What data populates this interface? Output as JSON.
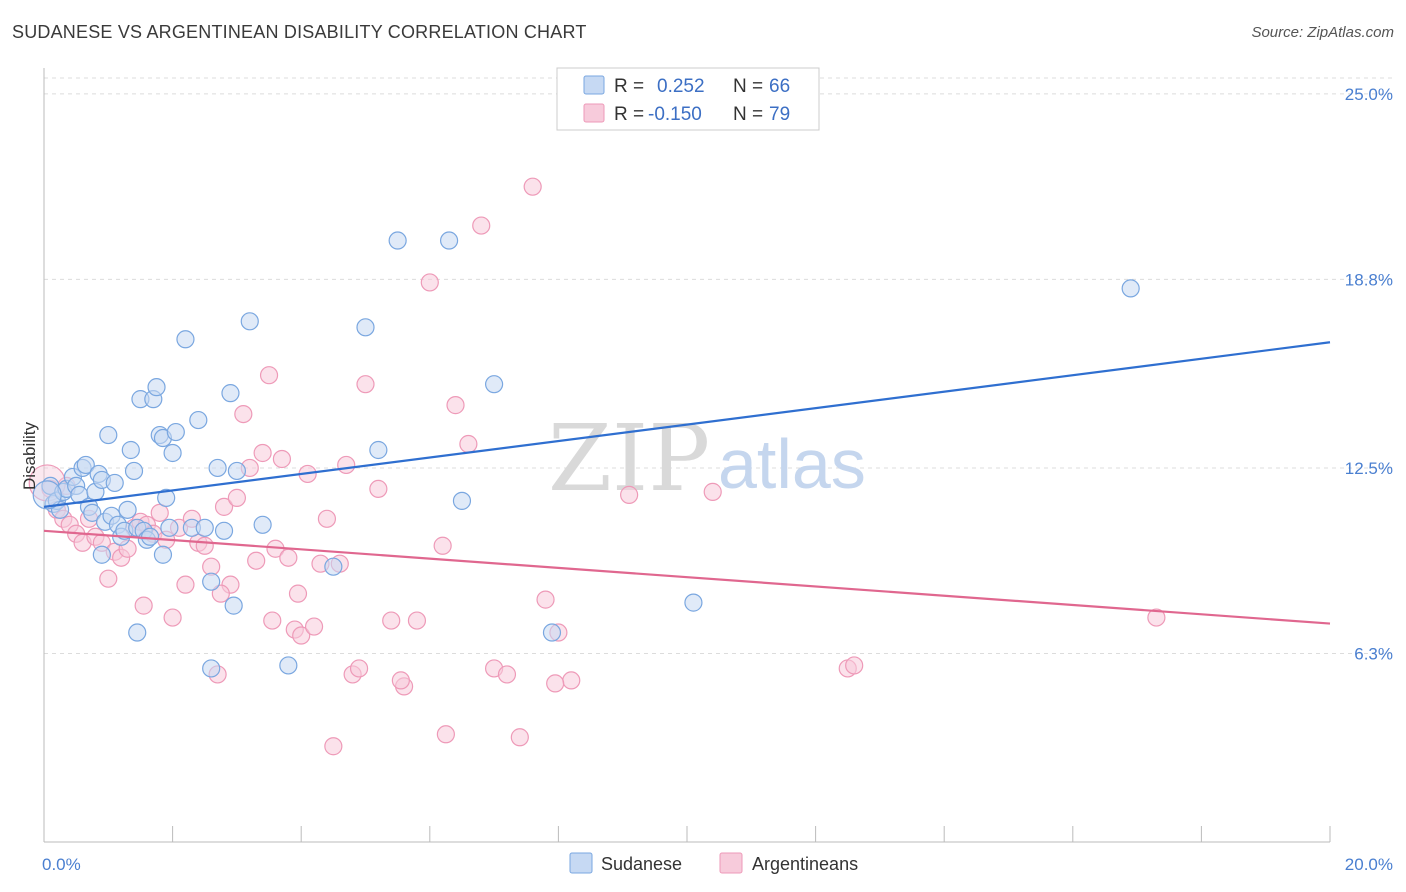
{
  "title": "SUDANESE VS ARGENTINEAN DISABILITY CORRELATION CHART",
  "source": "Source: ZipAtlas.com",
  "watermark": {
    "zip": "ZIP",
    "atlas": "atlas"
  },
  "chart_data": {
    "type": "scatter",
    "title": "SUDANESE VS ARGENTINEAN DISABILITY CORRELATION CHART",
    "xlabel": "",
    "ylabel": "Disability",
    "xlim": [
      0,
      20
    ],
    "ylim": [
      0,
      26.2
    ],
    "x_tick_labels": [
      {
        "value": 0,
        "label": "0.0%"
      },
      {
        "value": 20,
        "label": "20.0%"
      }
    ],
    "y_tick_labels": [
      {
        "value": 6.3,
        "label": "6.3%"
      },
      {
        "value": 12.5,
        "label": "12.5%"
      },
      {
        "value": 18.8,
        "label": "18.8%"
      },
      {
        "value": 25.0,
        "label": "25.0%"
      }
    ],
    "grid": true,
    "legend_position": "top-center",
    "colors": {
      "sudanese": "#7aa7e0",
      "sudanese_fill": "#c6d9f3",
      "sudanese_line": "#2f6fd0",
      "argentineans": "#ee9ab8",
      "argentineans_fill": "#f7cbdb",
      "argentineans_line": "#e0678f",
      "tick_label": "#4a7fd0"
    },
    "legend": [
      {
        "series": "Sudanese",
        "r_label": "R =",
        "r": "0.252",
        "n_label": "N =",
        "n": "66"
      },
      {
        "series": "Argentineans",
        "r_label": "R =",
        "r": "-0.150",
        "n_label": "N =",
        "n": "79"
      }
    ],
    "series": [
      {
        "name": "Sudanese",
        "trend": [
          [
            0,
            11.2
          ],
          [
            20,
            16.7
          ]
        ],
        "points": [
          [
            0.1,
            11.9
          ],
          [
            0.15,
            11.3
          ],
          [
            0.2,
            11.4
          ],
          [
            0.25,
            11.1
          ],
          [
            0.3,
            11.7
          ],
          [
            0.35,
            11.8
          ],
          [
            0.45,
            12.2
          ],
          [
            0.5,
            11.9
          ],
          [
            0.55,
            11.6
          ],
          [
            0.6,
            12.5
          ],
          [
            0.65,
            12.6
          ],
          [
            0.7,
            11.2
          ],
          [
            0.75,
            11.0
          ],
          [
            0.8,
            11.7
          ],
          [
            0.85,
            12.3
          ],
          [
            0.9,
            12.1
          ],
          [
            0.95,
            10.7
          ],
          [
            1.0,
            13.6
          ],
          [
            1.05,
            10.9
          ],
          [
            1.1,
            12.0
          ],
          [
            1.15,
            10.6
          ],
          [
            1.2,
            10.2
          ],
          [
            1.25,
            10.4
          ],
          [
            1.3,
            11.1
          ],
          [
            1.35,
            13.1
          ],
          [
            1.4,
            12.4
          ],
          [
            1.45,
            10.5
          ],
          [
            1.5,
            14.8
          ],
          [
            1.55,
            10.4
          ],
          [
            1.6,
            10.1
          ],
          [
            1.65,
            10.2
          ],
          [
            1.7,
            14.8
          ],
          [
            1.75,
            15.2
          ],
          [
            1.8,
            13.6
          ],
          [
            1.85,
            13.5
          ],
          [
            1.9,
            11.5
          ],
          [
            1.95,
            10.5
          ],
          [
            2.0,
            13.0
          ],
          [
            2.05,
            13.7
          ],
          [
            2.2,
            16.8
          ],
          [
            2.3,
            10.5
          ],
          [
            2.4,
            14.1
          ],
          [
            2.5,
            10.5
          ],
          [
            2.6,
            8.7
          ],
          [
            2.7,
            12.5
          ],
          [
            2.8,
            10.4
          ],
          [
            2.9,
            15.0
          ],
          [
            3.0,
            12.4
          ],
          [
            3.2,
            17.4
          ],
          [
            3.4,
            10.6
          ],
          [
            3.8,
            5.9
          ],
          [
            4.5,
            9.2
          ],
          [
            5.0,
            17.2
          ],
          [
            5.2,
            13.1
          ],
          [
            5.5,
            20.1
          ],
          [
            6.3,
            20.1
          ],
          [
            6.5,
            11.4
          ],
          [
            7.0,
            15.3
          ],
          [
            7.9,
            7.0
          ],
          [
            10.1,
            8.0
          ],
          [
            16.9,
            18.5
          ],
          [
            1.45,
            7.0
          ],
          [
            2.6,
            5.8
          ],
          [
            2.95,
            7.9
          ],
          [
            1.85,
            9.6
          ],
          [
            0.9,
            9.6
          ]
        ]
      },
      {
        "name": "Argentineans",
        "trend": [
          [
            0,
            10.4
          ],
          [
            20,
            7.3
          ]
        ],
        "points": [
          [
            0.1,
            11.8
          ],
          [
            0.2,
            11.1
          ],
          [
            0.3,
            10.8
          ],
          [
            0.4,
            10.6
          ],
          [
            0.5,
            10.3
          ],
          [
            0.6,
            10.0
          ],
          [
            0.7,
            10.8
          ],
          [
            0.8,
            10.2
          ],
          [
            0.9,
            10.0
          ],
          [
            1.0,
            8.8
          ],
          [
            1.1,
            9.7
          ],
          [
            1.2,
            9.5
          ],
          [
            1.3,
            9.8
          ],
          [
            1.4,
            10.5
          ],
          [
            1.5,
            10.7
          ],
          [
            1.6,
            10.6
          ],
          [
            1.7,
            10.3
          ],
          [
            1.8,
            11.0
          ],
          [
            1.9,
            10.1
          ],
          [
            2.0,
            7.5
          ],
          [
            2.1,
            10.5
          ],
          [
            2.2,
            8.6
          ],
          [
            2.3,
            10.8
          ],
          [
            2.4,
            10.0
          ],
          [
            2.5,
            9.9
          ],
          [
            2.6,
            9.2
          ],
          [
            2.7,
            5.6
          ],
          [
            2.8,
            11.2
          ],
          [
            2.9,
            8.6
          ],
          [
            3.0,
            11.5
          ],
          [
            3.1,
            14.3
          ],
          [
            3.2,
            12.5
          ],
          [
            3.3,
            9.4
          ],
          [
            3.4,
            13.0
          ],
          [
            3.5,
            15.6
          ],
          [
            3.6,
            9.8
          ],
          [
            3.7,
            12.8
          ],
          [
            3.8,
            9.5
          ],
          [
            3.9,
            7.1
          ],
          [
            4.0,
            6.9
          ],
          [
            4.1,
            12.3
          ],
          [
            4.2,
            7.2
          ],
          [
            4.3,
            9.3
          ],
          [
            4.4,
            10.8
          ],
          [
            4.5,
            3.2
          ],
          [
            4.6,
            9.3
          ],
          [
            4.7,
            12.6
          ],
          [
            4.8,
            5.6
          ],
          [
            4.9,
            5.8
          ],
          [
            5.0,
            15.3
          ],
          [
            5.2,
            11.8
          ],
          [
            5.4,
            7.4
          ],
          [
            5.6,
            5.2
          ],
          [
            5.8,
            7.4
          ],
          [
            6.0,
            18.7
          ],
          [
            6.2,
            9.9
          ],
          [
            6.4,
            14.6
          ],
          [
            6.6,
            13.3
          ],
          [
            6.8,
            20.6
          ],
          [
            7.0,
            5.8
          ],
          [
            7.2,
            5.6
          ],
          [
            7.4,
            3.5
          ],
          [
            7.6,
            21.9
          ],
          [
            7.8,
            8.1
          ],
          [
            8.0,
            7.0
          ],
          [
            8.2,
            5.4
          ],
          [
            9.1,
            11.6
          ],
          [
            10.4,
            11.7
          ],
          [
            12.5,
            5.8
          ],
          [
            12.6,
            5.9
          ],
          [
            17.3,
            7.5
          ],
          [
            1.55,
            7.9
          ],
          [
            2.75,
            8.3
          ],
          [
            3.95,
            8.3
          ],
          [
            6.25,
            3.6
          ],
          [
            7.95,
            5.3
          ],
          [
            3.55,
            7.4
          ],
          [
            5.55,
            5.4
          ],
          [
            0.35,
            11.9
          ]
        ]
      }
    ]
  },
  "bottom_legend": [
    {
      "label": "Sudanese"
    },
    {
      "label": "Argentineans"
    }
  ]
}
